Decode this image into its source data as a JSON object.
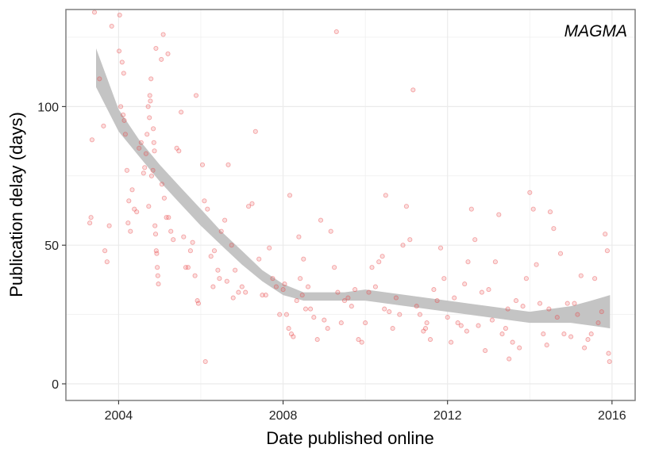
{
  "chart_data": {
    "type": "scatter",
    "title": "",
    "annotation": "MAGMA",
    "xlabel": "Date published online",
    "ylabel": "Publication delay (days)",
    "x_is_date": true,
    "xlim": [
      "2002-09-20",
      "2016-07-25"
    ],
    "ylim": [
      -6,
      135
    ],
    "x_ticks": [
      {
        "value": "2004-01-01",
        "label": "2004"
      },
      {
        "value": "2008-01-01",
        "label": "2008"
      },
      {
        "value": "2012-01-01",
        "label": "2012"
      },
      {
        "value": "2016-01-01",
        "label": "2016"
      }
    ],
    "y_ticks": [
      {
        "value": 0,
        "label": "0"
      },
      {
        "value": 50,
        "label": "50"
      },
      {
        "value": 100,
        "label": "100"
      }
    ],
    "grid": true,
    "colors": {
      "points": "#e8474a",
      "band": "#c4c4c4",
      "grid": "#ebebeb",
      "border": "#7f7f7f"
    },
    "smooth": {
      "x": [
        "2003-06-15",
        "2004-01-01",
        "2004-07-01",
        "2005-01-01",
        "2005-07-01",
        "2006-01-01",
        "2006-07-01",
        "2007-01-01",
        "2007-07-01",
        "2008-01-01",
        "2008-07-01",
        "2009-01-01",
        "2009-07-01",
        "2010-01-01",
        "2010-07-01",
        "2011-01-01",
        "2011-07-01",
        "2012-01-01",
        "2012-07-01",
        "2013-01-01",
        "2013-07-01",
        "2014-01-01",
        "2014-07-01",
        "2015-01-01",
        "2015-07-01",
        "2015-12-15"
      ],
      "lower": [
        107,
        91,
        82,
        73,
        65,
        57,
        50,
        43,
        37,
        32,
        30,
        30,
        30,
        30,
        29,
        28,
        27,
        26,
        25,
        24,
        23,
        22,
        22,
        22,
        21,
        20
      ],
      "upper": [
        121,
        99,
        88,
        79,
        71,
        63,
        55,
        48,
        41,
        36,
        33,
        33,
        33,
        34,
        33,
        32,
        31,
        30,
        29,
        28,
        27,
        26,
        27,
        28,
        30,
        32
      ]
    },
    "series": [
      {
        "points": [
          [
            "2003-06-01",
            134
          ],
          [
            "2003-07-15",
            110
          ],
          [
            "2003-08-20",
            93
          ],
          [
            "2003-05-10",
            88
          ],
          [
            "2003-04-20",
            58
          ],
          [
            "2003-05-01",
            60
          ],
          [
            "2003-09-01",
            48
          ],
          [
            "2003-09-20",
            44
          ],
          [
            "2003-10-10",
            57
          ],
          [
            "2003-11-01",
            129
          ],
          [
            "2004-01-10",
            133
          ],
          [
            "2004-01-05",
            120
          ],
          [
            "2004-02-01",
            116
          ],
          [
            "2004-02-15",
            112
          ],
          [
            "2004-01-20",
            100
          ],
          [
            "2004-02-10",
            97
          ],
          [
            "2004-02-20",
            95
          ],
          [
            "2004-03-01",
            90
          ],
          [
            "2004-03-15",
            77
          ],
          [
            "2004-04-01",
            66
          ],
          [
            "2004-05-01",
            70
          ],
          [
            "2004-05-20",
            63
          ],
          [
            "2004-06-10",
            62
          ],
          [
            "2004-04-15",
            55
          ],
          [
            "2004-03-25",
            58
          ],
          [
            "2004-07-01",
            85
          ],
          [
            "2004-07-20",
            87
          ],
          [
            "2004-08-10",
            76
          ],
          [
            "2004-08-20",
            78
          ],
          [
            "2004-09-01",
            83
          ],
          [
            "2004-09-10",
            90
          ],
          [
            "2004-09-20",
            100
          ],
          [
            "2004-10-01",
            96
          ],
          [
            "2004-10-05",
            104
          ],
          [
            "2004-10-10",
            102
          ],
          [
            "2004-10-15",
            110
          ],
          [
            "2004-09-25",
            64
          ],
          [
            "2004-10-20",
            75
          ],
          [
            "2004-11-01",
            77
          ],
          [
            "2004-11-05",
            92
          ],
          [
            "2004-11-10",
            87
          ],
          [
            "2004-11-15",
            84
          ],
          [
            "2004-11-20",
            57
          ],
          [
            "2004-11-25",
            54
          ],
          [
            "2004-12-01",
            48
          ],
          [
            "2004-12-05",
            47
          ],
          [
            "2004-12-10",
            42
          ],
          [
            "2004-12-15",
            39
          ],
          [
            "2004-12-20",
            36
          ],
          [
            "2004-11-28",
            121
          ],
          [
            "2005-01-15",
            117
          ],
          [
            "2005-02-01",
            126
          ],
          [
            "2005-03-15",
            119
          ],
          [
            "2005-01-20",
            72
          ],
          [
            "2005-02-10",
            67
          ],
          [
            "2005-03-01",
            60
          ],
          [
            "2005-03-20",
            60
          ],
          [
            "2005-04-10",
            55
          ],
          [
            "2005-05-01",
            52
          ],
          [
            "2005-06-01",
            85
          ],
          [
            "2005-06-20",
            84
          ],
          [
            "2005-07-10",
            98
          ],
          [
            "2005-08-01",
            53
          ],
          [
            "2005-08-20",
            42
          ],
          [
            "2005-09-10",
            42
          ],
          [
            "2005-10-01",
            48
          ],
          [
            "2005-10-20",
            51
          ],
          [
            "2005-11-10",
            39
          ],
          [
            "2005-12-01",
            30
          ],
          [
            "2005-12-10",
            29
          ],
          [
            "2005-11-20",
            104
          ],
          [
            "2006-01-15",
            79
          ],
          [
            "2006-02-01",
            66
          ],
          [
            "2006-03-01",
            63
          ],
          [
            "2006-04-01",
            46
          ],
          [
            "2006-05-01",
            48
          ],
          [
            "2006-06-01",
            41
          ],
          [
            "2006-07-01",
            55
          ],
          [
            "2006-08-01",
            59
          ],
          [
            "2006-09-01",
            79
          ],
          [
            "2006-10-01",
            50
          ],
          [
            "2006-11-01",
            41
          ],
          [
            "2006-12-01",
            33
          ],
          [
            "2007-01-01",
            35
          ],
          [
            "2007-02-01",
            33
          ],
          [
            "2007-03-01",
            64
          ],
          [
            "2007-04-01",
            65
          ],
          [
            "2007-05-01",
            91
          ],
          [
            "2007-06-01",
            45
          ],
          [
            "2007-07-01",
            32
          ],
          [
            "2007-08-01",
            32
          ],
          [
            "2007-09-01",
            49
          ],
          [
            "2007-10-01",
            38
          ],
          [
            "2007-11-01",
            35
          ],
          [
            "2007-12-01",
            25
          ],
          [
            "2006-04-20",
            35
          ],
          [
            "2006-06-15",
            38
          ],
          [
            "2006-08-20",
            37
          ],
          [
            "2006-10-15",
            31
          ],
          [
            "2006-02-10",
            8
          ],
          [
            "2008-01-01",
            34
          ],
          [
            "2008-01-15",
            36
          ],
          [
            "2008-02-01",
            25
          ],
          [
            "2008-02-20",
            20
          ],
          [
            "2008-03-01",
            68
          ],
          [
            "2008-03-15",
            18
          ],
          [
            "2008-04-01",
            17
          ],
          [
            "2008-05-01",
            30
          ],
          [
            "2008-06-01",
            38
          ],
          [
            "2008-06-20",
            32
          ],
          [
            "2008-07-01",
            45
          ],
          [
            "2008-07-20",
            27
          ],
          [
            "2008-08-10",
            35
          ],
          [
            "2008-09-01",
            27
          ],
          [
            "2008-10-01",
            24
          ],
          [
            "2008-11-01",
            16
          ],
          [
            "2008-12-01",
            59
          ],
          [
            "2009-01-01",
            23
          ],
          [
            "2009-02-01",
            20
          ],
          [
            "2009-03-01",
            55
          ],
          [
            "2009-04-01",
            42
          ],
          [
            "2009-05-01",
            33
          ],
          [
            "2009-06-01",
            22
          ],
          [
            "2009-07-01",
            30
          ],
          [
            "2009-08-01",
            31
          ],
          [
            "2009-09-01",
            28
          ],
          [
            "2009-10-01",
            34
          ],
          [
            "2009-11-01",
            16
          ],
          [
            "2009-12-01",
            15
          ],
          [
            "2010-01-01",
            22
          ],
          [
            "2010-02-01",
            33
          ],
          [
            "2010-03-01",
            42
          ],
          [
            "2010-04-01",
            35
          ],
          [
            "2010-05-01",
            44
          ],
          [
            "2010-06-01",
            46
          ],
          [
            "2010-07-01",
            68
          ],
          [
            "2010-08-01",
            26
          ],
          [
            "2010-09-01",
            20
          ],
          [
            "2010-10-01",
            31
          ],
          [
            "2010-11-01",
            25
          ],
          [
            "2010-12-01",
            50
          ],
          [
            "2011-01-01",
            64
          ],
          [
            "2011-02-01",
            52
          ],
          [
            "2011-03-01",
            106
          ],
          [
            "2011-04-01",
            28
          ],
          [
            "2011-05-01",
            25
          ],
          [
            "2011-06-01",
            19
          ],
          [
            "2011-07-01",
            22
          ],
          [
            "2011-08-01",
            16
          ],
          [
            "2011-09-01",
            34
          ],
          [
            "2011-10-01",
            30
          ],
          [
            "2011-11-01",
            49
          ],
          [
            "2011-12-01",
            38
          ],
          [
            "2012-01-01",
            24
          ],
          [
            "2012-02-01",
            15
          ],
          [
            "2012-03-01",
            31
          ],
          [
            "2012-04-01",
            22
          ],
          [
            "2012-05-01",
            21
          ],
          [
            "2012-06-01",
            36
          ],
          [
            "2012-07-01",
            44
          ],
          [
            "2012-08-01",
            63
          ],
          [
            "2012-09-01",
            52
          ],
          [
            "2012-10-01",
            21
          ],
          [
            "2012-11-01",
            33
          ],
          [
            "2012-12-01",
            12
          ],
          [
            "2013-01-01",
            34
          ],
          [
            "2013-02-01",
            23
          ],
          [
            "2013-03-01",
            44
          ],
          [
            "2013-04-01",
            61
          ],
          [
            "2013-05-01",
            18
          ],
          [
            "2013-06-01",
            20
          ],
          [
            "2013-07-01",
            9
          ],
          [
            "2013-08-01",
            15
          ],
          [
            "2013-09-01",
            30
          ],
          [
            "2013-10-01",
            13
          ],
          [
            "2013-11-01",
            28
          ],
          [
            "2013-12-01",
            38
          ],
          [
            "2014-01-01",
            69
          ],
          [
            "2014-02-01",
            63
          ],
          [
            "2014-03-01",
            43
          ],
          [
            "2014-04-01",
            29
          ],
          [
            "2014-05-01",
            18
          ],
          [
            "2014-06-01",
            14
          ],
          [
            "2014-07-01",
            62
          ],
          [
            "2014-08-01",
            56
          ],
          [
            "2014-09-01",
            24
          ],
          [
            "2014-10-01",
            47
          ],
          [
            "2014-11-01",
            18
          ],
          [
            "2014-12-01",
            29
          ],
          [
            "2015-01-01",
            17
          ],
          [
            "2015-02-01",
            29
          ],
          [
            "2015-03-01",
            25
          ],
          [
            "2015-04-01",
            39
          ],
          [
            "2015-05-01",
            13
          ],
          [
            "2015-06-01",
            16
          ],
          [
            "2015-07-01",
            18
          ],
          [
            "2015-08-01",
            38
          ],
          [
            "2015-09-01",
            22
          ],
          [
            "2015-10-01",
            26
          ],
          [
            "2015-11-01",
            54
          ],
          [
            "2015-11-20",
            48
          ],
          [
            "2015-12-01",
            11
          ],
          [
            "2015-12-10",
            8
          ],
          [
            "2008-05-20",
            53
          ],
          [
            "2009-04-20",
            127
          ],
          [
            "2010-06-20",
            27
          ],
          [
            "2011-06-20",
            20
          ],
          [
            "2012-06-20",
            19
          ],
          [
            "2013-06-20",
            27
          ],
          [
            "2014-06-20",
            27
          ]
        ]
      }
    ]
  }
}
